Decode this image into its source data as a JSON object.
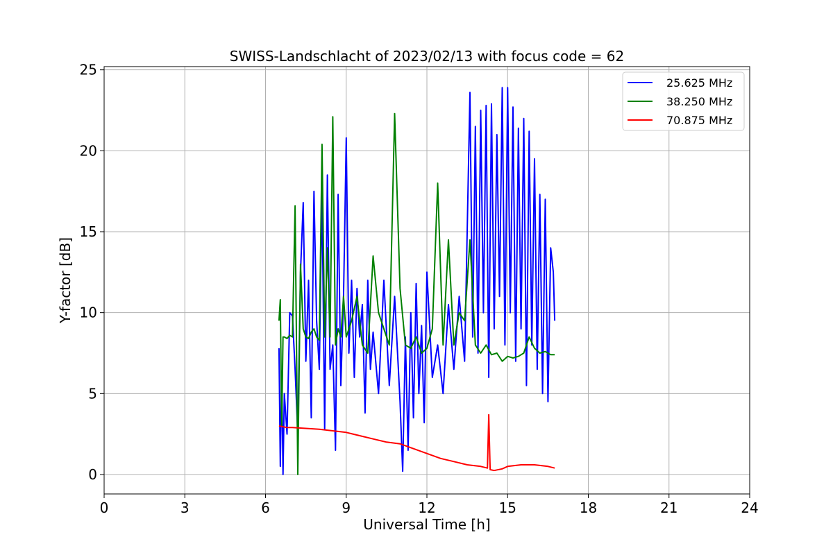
{
  "chart_data": {
    "type": "line",
    "title": "SWISS-Landschlacht of 2023/02/13 with focus code = 62",
    "xlabel": "Universal Time [h]",
    "ylabel": "Y-factor [dB]",
    "xlim": [
      0,
      24
    ],
    "ylim": [
      -1.2,
      25.2
    ],
    "xticks": [
      0,
      3,
      6,
      9,
      12,
      15,
      18,
      21,
      24
    ],
    "yticks": [
      0,
      5,
      10,
      15,
      20,
      25
    ],
    "grid": true,
    "legend_position": "top-right",
    "series": [
      {
        "name": "25.625 MHz",
        "color": "#0000ff",
        "x": [
          6.5,
          6.55,
          6.6,
          6.65,
          6.7,
          6.8,
          6.9,
          7.0,
          7.1,
          7.2,
          7.3,
          7.4,
          7.5,
          7.6,
          7.7,
          7.8,
          7.9,
          8.0,
          8.1,
          8.2,
          8.3,
          8.4,
          8.5,
          8.6,
          8.7,
          8.8,
          8.9,
          9.0,
          9.1,
          9.2,
          9.3,
          9.4,
          9.5,
          9.6,
          9.7,
          9.8,
          9.9,
          10.0,
          10.2,
          10.4,
          10.6,
          10.8,
          11.0,
          11.1,
          11.2,
          11.3,
          11.4,
          11.5,
          11.6,
          11.7,
          11.8,
          11.9,
          12.0,
          12.2,
          12.4,
          12.6,
          12.8,
          13.0,
          13.2,
          13.4,
          13.6,
          13.7,
          13.8,
          13.9,
          14.0,
          14.1,
          14.2,
          14.3,
          14.4,
          14.5,
          14.6,
          14.7,
          14.8,
          14.9,
          15.0,
          15.1,
          15.2,
          15.3,
          15.4,
          15.5,
          15.6,
          15.7,
          15.8,
          15.9,
          16.0,
          16.1,
          16.2,
          16.3,
          16.4,
          16.5,
          16.6,
          16.7,
          16.75
        ],
        "y": [
          7.8,
          0.5,
          6.4,
          0.0,
          5.0,
          2.5,
          10.0,
          9.8,
          6.5,
          2.5,
          12.5,
          16.8,
          7.0,
          12.0,
          3.5,
          17.5,
          9.5,
          6.5,
          17.5,
          2.8,
          18.5,
          6.5,
          8.0,
          1.5,
          17.3,
          5.5,
          11.0,
          20.8,
          7.5,
          12.0,
          6.0,
          11.5,
          8.5,
          10.5,
          3.8,
          12.0,
          6.5,
          8.8,
          5.0,
          12.0,
          5.5,
          11.0,
          4.5,
          0.2,
          8.5,
          1.5,
          10.0,
          3.5,
          11.8,
          5.0,
          9.2,
          3.2,
          12.5,
          6.0,
          8.0,
          5.0,
          10.5,
          6.5,
          11.0,
          7.0,
          23.6,
          8.5,
          21.5,
          7.5,
          22.5,
          10.0,
          22.8,
          6.0,
          22.9,
          9.0,
          21.0,
          11.0,
          23.9,
          8.0,
          23.9,
          10.0,
          22.7,
          7.0,
          21.4,
          9.0,
          22.0,
          5.5,
          21.2,
          8.0,
          19.5,
          6.5,
          17.3,
          5.0,
          17.0,
          4.5,
          14.0,
          12.5,
          9.5
        ]
      },
      {
        "name": "38.250 MHz",
        "color": "#008000",
        "x": [
          6.5,
          6.55,
          6.6,
          6.65,
          6.7,
          6.8,
          6.9,
          7.0,
          7.1,
          7.2,
          7.3,
          7.4,
          7.5,
          7.6,
          7.7,
          7.8,
          7.9,
          8.0,
          8.1,
          8.2,
          8.3,
          8.4,
          8.5,
          8.6,
          8.7,
          8.8,
          8.9,
          9.0,
          9.2,
          9.4,
          9.6,
          9.8,
          10.0,
          10.2,
          10.4,
          10.6,
          10.8,
          11.0,
          11.2,
          11.4,
          11.6,
          11.8,
          12.0,
          12.2,
          12.4,
          12.6,
          12.8,
          13.0,
          13.2,
          13.4,
          13.6,
          13.8,
          14.0,
          14.2,
          14.4,
          14.6,
          14.8,
          15.0,
          15.2,
          15.4,
          15.6,
          15.8,
          16.0,
          16.2,
          16.4,
          16.6,
          16.75
        ],
        "y": [
          9.5,
          10.8,
          3.0,
          8.5,
          8.5,
          8.4,
          8.6,
          8.5,
          16.6,
          0.0,
          13.0,
          9.0,
          8.5,
          8.4,
          8.8,
          9.0,
          8.5,
          8.3,
          20.4,
          8.5,
          14.0,
          8.5,
          22.1,
          8.0,
          9.0,
          8.5,
          11.0,
          8.5,
          9.5,
          11.0,
          8.0,
          7.5,
          13.5,
          10.0,
          9.0,
          8.0,
          22.3,
          11.5,
          8.0,
          7.8,
          8.5,
          7.5,
          7.8,
          9.0,
          18.0,
          8.0,
          14.5,
          8.0,
          10.0,
          9.5,
          14.5,
          8.0,
          7.5,
          8.0,
          7.4,
          7.5,
          7.0,
          7.3,
          7.2,
          7.3,
          7.5,
          8.5,
          7.8,
          7.5,
          7.6,
          7.4,
          7.4
        ]
      },
      {
        "name": "70.875 MHz",
        "color": "#ff0000",
        "x": [
          6.5,
          6.8,
          7.0,
          7.5,
          8.0,
          8.5,
          9.0,
          9.5,
          10.0,
          10.5,
          11.0,
          11.5,
          12.0,
          12.5,
          13.0,
          13.5,
          14.0,
          14.25,
          14.3,
          14.35,
          14.5,
          14.8,
          15.0,
          15.5,
          16.0,
          16.5,
          16.75
        ],
        "y": [
          3.0,
          2.9,
          2.9,
          2.85,
          2.8,
          2.7,
          2.6,
          2.4,
          2.2,
          2.0,
          1.9,
          1.6,
          1.3,
          1.0,
          0.8,
          0.6,
          0.5,
          0.4,
          3.7,
          0.3,
          0.25,
          0.35,
          0.5,
          0.6,
          0.6,
          0.5,
          0.4
        ]
      }
    ]
  }
}
